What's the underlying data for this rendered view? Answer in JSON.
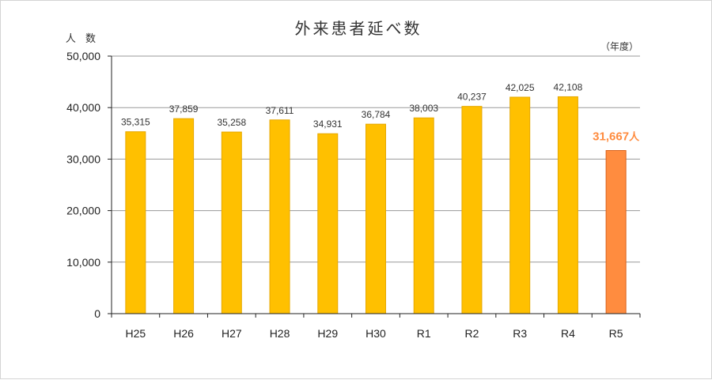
{
  "chart_data": {
    "type": "bar",
    "title": "外来患者延べ数",
    "ylabel": "人 数",
    "unit_label": "（年度）",
    "categories": [
      "H25",
      "H26",
      "H27",
      "H28",
      "H29",
      "H30",
      "R1",
      "R2",
      "R3",
      "R4",
      "R5"
    ],
    "values": [
      35315,
      37859,
      35258,
      37611,
      34931,
      36784,
      38003,
      40237,
      42025,
      42108,
      31667
    ],
    "data_labels": [
      "35,315",
      "37,859",
      "35,258",
      "37,611",
      "34,931",
      "36,784",
      "38,003",
      "40,237",
      "42,025",
      "42,108",
      "31,667"
    ],
    "highlight_index": 10,
    "highlight_suffix": "人",
    "ylim": [
      0,
      50000
    ],
    "yticks": [
      0,
      10000,
      20000,
      30000,
      40000,
      50000
    ],
    "ytick_labels": [
      "0",
      "10,000",
      "20,000",
      "30,000",
      "40,000",
      "50,000"
    ],
    "grid": true,
    "colors": {
      "bar": "#FFC000",
      "bar_edge": "#E6A800",
      "highlight_bar": "#FF8C3F",
      "highlight_edge": "#D9621A",
      "highlight_label": "#FF8C3F",
      "grid": "#999999",
      "axis": "#222222"
    }
  }
}
